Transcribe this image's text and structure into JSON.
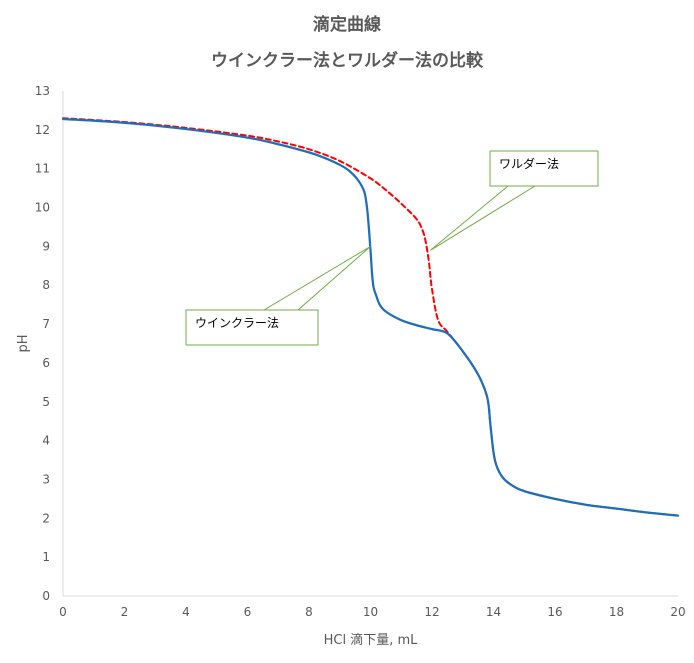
{
  "chart_data": {
    "type": "line",
    "title": "滴定曲線",
    "subtitle": "ウインクラー法とワルダー法の比較",
    "xlabel": "HCl 滴下量, mL",
    "ylabel": "pH",
    "xlim": [
      0,
      20
    ],
    "ylim": [
      0,
      13
    ],
    "x_ticks": [
      "0",
      "2",
      "4",
      "6",
      "8",
      "10",
      "12",
      "14",
      "16",
      "18",
      "20"
    ],
    "y_ticks": [
      "0",
      "1",
      "2",
      "3",
      "4",
      "5",
      "6",
      "7",
      "8",
      "9",
      "10",
      "11",
      "12",
      "13"
    ],
    "grid": false,
    "series": [
      {
        "name": "ワルダー法",
        "color": "#ff0000",
        "style": "dashed",
        "x": [
          0,
          2,
          4,
          6,
          7,
          8,
          9,
          10,
          10.5,
          11,
          11.5,
          11.7,
          11.8,
          11.9,
          12.0,
          12.2,
          12.5,
          13,
          13.5,
          13.8,
          13.9,
          14.0,
          14.1,
          14.3,
          14.6,
          15,
          16,
          17,
          18,
          19,
          20
        ],
        "y": [
          12.3,
          12.2,
          12.05,
          11.85,
          11.7,
          11.5,
          11.2,
          10.75,
          10.45,
          10.1,
          9.7,
          9.4,
          9.1,
          8.6,
          7.9,
          7.1,
          6.8,
          6.3,
          5.7,
          5.1,
          4.4,
          3.7,
          3.35,
          3.05,
          2.85,
          2.7,
          2.5,
          2.35,
          2.25,
          2.15,
          2.07
        ]
      },
      {
        "name": "ウインクラー法",
        "color": "#1f6fb8",
        "style": "solid",
        "x": [
          0,
          2,
          4,
          6,
          7,
          8,
          8.5,
          9,
          9.3,
          9.6,
          9.8,
          9.9,
          10.0,
          10.05,
          10.1,
          10.2,
          10.3,
          10.5,
          11,
          11.5,
          12,
          12.5,
          13,
          13.5,
          13.8,
          13.9,
          14.0,
          14.1,
          14.3,
          14.6,
          15,
          16,
          17,
          18,
          19,
          20
        ],
        "y": [
          12.28,
          12.18,
          12.02,
          11.8,
          11.63,
          11.42,
          11.28,
          11.1,
          10.95,
          10.7,
          10.4,
          9.9,
          8.9,
          8.3,
          7.95,
          7.7,
          7.5,
          7.32,
          7.1,
          6.97,
          6.87,
          6.76,
          6.3,
          5.7,
          5.1,
          4.4,
          3.7,
          3.35,
          3.05,
          2.85,
          2.7,
          2.5,
          2.35,
          2.25,
          2.15,
          2.07
        ]
      }
    ],
    "annotations": [
      {
        "text": "ワルダー法",
        "target_x": 11.95,
        "target_y": 8.9
      },
      {
        "text": "ウインクラー法",
        "target_x": 10.0,
        "target_y": 9.0
      }
    ]
  }
}
